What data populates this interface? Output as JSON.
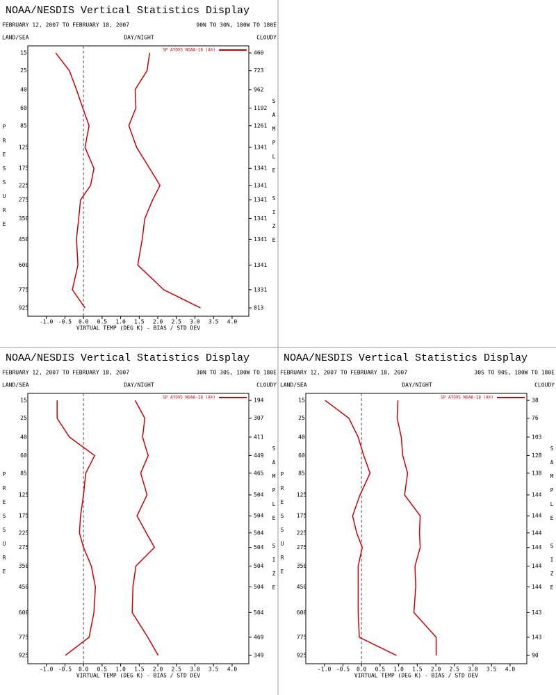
{
  "chart_data": [
    {
      "type": "line",
      "title": "NOAA/NESDIS Vertical Statistics Display",
      "date_range": "FEBRUARY 12, 2007 TO FEBRUARY 18, 2007",
      "region": "90N TO 30N, 180W TO 180E",
      "land_sea": "LAND/SEA",
      "day_night": "DAY/NIGHT",
      "cloudy": "CLOUDY",
      "ylabel": "PRESSURE",
      "y2label": "SAMPLE SIZE",
      "xlabel": "VIRTUAL TEMP (DEG K) - BIAS / STD DEV",
      "y": [
        15,
        25,
        40,
        60,
        85,
        125,
        175,
        225,
        275,
        350,
        450,
        600,
        775,
        925
      ],
      "ylim": [
        12,
        1000
      ],
      "y_exponent": 0.286,
      "yticks": [
        15,
        25,
        40,
        60,
        85,
        125,
        175,
        225,
        275,
        350,
        450,
        600,
        775,
        925
      ],
      "xlim": [
        -1.5,
        4.45
      ],
      "xticks": [
        {
          "value": -1,
          "label": "-1.0"
        },
        {
          "value": -0.5,
          "label": "-0.5"
        },
        {
          "value": 0,
          "label": "0.0"
        },
        {
          "value": 0.5,
          "label": "0.5"
        },
        {
          "value": 1,
          "label": "1.0"
        },
        {
          "value": 1.5,
          "label": "1.5"
        },
        {
          "value": 2,
          "label": "2.0"
        },
        {
          "value": 2.5,
          "label": "2.5"
        },
        {
          "value": 3,
          "label": "3.0"
        },
        {
          "value": 3.5,
          "label": "3.5"
        },
        {
          "value": 4,
          "label": "4.0"
        }
      ],
      "sample_size": [
        460,
        723,
        962,
        1192,
        1261,
        1341,
        1341,
        1341,
        1341,
        1341,
        1341,
        1341,
        1331,
        813
      ],
      "series": [
        {
          "name": "SP ATOVS NOAA-18 (A®)",
          "color": "#cc0000",
          "values": [
            -0.75,
            -0.38,
            -0.19,
            -0.02,
            0.15,
            0.04,
            0.28,
            0.19,
            -0.08,
            -0.13,
            -0.19,
            -0.15,
            -0.3,
            0.04
          ],
          "std_dev": [
            1.78,
            1.71,
            1.39,
            1.41,
            1.22,
            1.43,
            1.78,
            2.06,
            1.86,
            1.65,
            1.58,
            1.46,
            2.16,
            3.15
          ]
        }
      ]
    },
    {
      "type": "line",
      "title": "NOAA/NESDIS Vertical Statistics Display",
      "date_range": "FEBRUARY 12, 2007 TO FEBRUARY 18, 2007",
      "region": "30N TO 30S, 180W TO 180E",
      "land_sea": "LAND/SEA",
      "day_night": "DAY/NIGHT",
      "cloudy": "CLOUDY",
      "ylabel": "PRESSURE",
      "y2label": "SAMPLE SIZE",
      "xlabel": "VIRTUAL TEMP (DEG K) - BIAS / STD DEV",
      "y": [
        15,
        25,
        40,
        60,
        85,
        125,
        175,
        225,
        275,
        350,
        450,
        600,
        775,
        925
      ],
      "ylim": [
        12,
        1000
      ],
      "y_exponent": 0.286,
      "yticks": [
        15,
        25,
        40,
        60,
        85,
        125,
        175,
        225,
        275,
        350,
        450,
        600,
        775,
        925
      ],
      "xlim": [
        -1.5,
        4.45
      ],
      "xticks": [
        {
          "value": -1,
          "label": "-1.0"
        },
        {
          "value": -0.5,
          "label": "-0.5"
        },
        {
          "value": 0,
          "label": "0.0"
        },
        {
          "value": 0.5,
          "label": "0.5"
        },
        {
          "value": 1,
          "label": "1.0"
        },
        {
          "value": 1.5,
          "label": "1.5"
        },
        {
          "value": 2,
          "label": "2.0"
        },
        {
          "value": 2.5,
          "label": "2.5"
        },
        {
          "value": 3,
          "label": "3.0"
        },
        {
          "value": 3.5,
          "label": "3.5"
        },
        {
          "value": 4,
          "label": "4.0"
        }
      ],
      "sample_size": [
        194,
        307,
        411,
        449,
        465,
        504,
        504,
        504,
        504,
        504,
        504,
        504,
        469,
        349
      ],
      "series": [
        {
          "name": "SP ATOVS NOAA-18 (A®)",
          "color": "#cc0000",
          "values": [
            -0.71,
            -0.71,
            -0.38,
            0.3,
            0.06,
            0.0,
            -0.08,
            -0.11,
            0.0,
            0.21,
            0.32,
            0.28,
            0.15,
            -0.49
          ],
          "std_dev": [
            1.39,
            1.65,
            1.59,
            1.74,
            1.54,
            1.71,
            1.44,
            1.69,
            1.91,
            1.41,
            1.33,
            1.31,
            1.73,
            2.01
          ]
        }
      ]
    },
    {
      "type": "line",
      "title": "NOAA/NESDIS Vertical Statistics Display",
      "date_range": "FEBRUARY 12, 2007 TO FEBRUARY 18, 2007",
      "region": "30S TO 90S, 180W TO 180E",
      "land_sea": "LAND/SEA",
      "day_night": "DAY/NIGHT",
      "cloudy": "CLOUDY",
      "ylabel": "PRESSURE",
      "y2label": "SAMPLE SIZE",
      "xlabel": "VIRTUAL TEMP (DEG K) - BIAS / STD DEV",
      "y": [
        15,
        25,
        40,
        60,
        85,
        125,
        175,
        225,
        275,
        350,
        450,
        600,
        775,
        925
      ],
      "ylim": [
        12,
        1000
      ],
      "y_exponent": 0.286,
      "yticks": [
        15,
        25,
        40,
        60,
        85,
        125,
        175,
        225,
        275,
        350,
        450,
        600,
        775,
        925
      ],
      "xlim": [
        -1.5,
        4.45
      ],
      "xticks": [
        {
          "value": -1,
          "label": "-1.0"
        },
        {
          "value": -0.5,
          "label": "-0.5"
        },
        {
          "value": 0,
          "label": "0.0"
        },
        {
          "value": 0.5,
          "label": "0.5"
        },
        {
          "value": 1,
          "label": "1.0"
        },
        {
          "value": 1.5,
          "label": "1.5"
        },
        {
          "value": 2,
          "label": "2.0"
        },
        {
          "value": 2.5,
          "label": "2.5"
        },
        {
          "value": 3,
          "label": "3.0"
        },
        {
          "value": 3.5,
          "label": "3.5"
        },
        {
          "value": 4,
          "label": "4.0"
        }
      ],
      "sample_size": [
        38,
        76,
        103,
        128,
        138,
        144,
        144,
        144,
        144,
        144,
        144,
        143,
        143,
        90
      ],
      "series": [
        {
          "name": "SP ATOVS NOAA-18 (A®)",
          "color": "#cc0000",
          "values": [
            -0.98,
            -0.34,
            -0.09,
            0.06,
            0.23,
            -0.04,
            -0.24,
            -0.13,
            0.02,
            -0.09,
            -0.09,
            -0.09,
            -0.06,
            0.94
          ],
          "std_dev": [
            0.98,
            0.96,
            1.07,
            1.11,
            1.24,
            1.16,
            1.58,
            1.56,
            1.58,
            1.44,
            1.46,
            1.41,
            2.01,
            2.01
          ]
        }
      ]
    }
  ]
}
